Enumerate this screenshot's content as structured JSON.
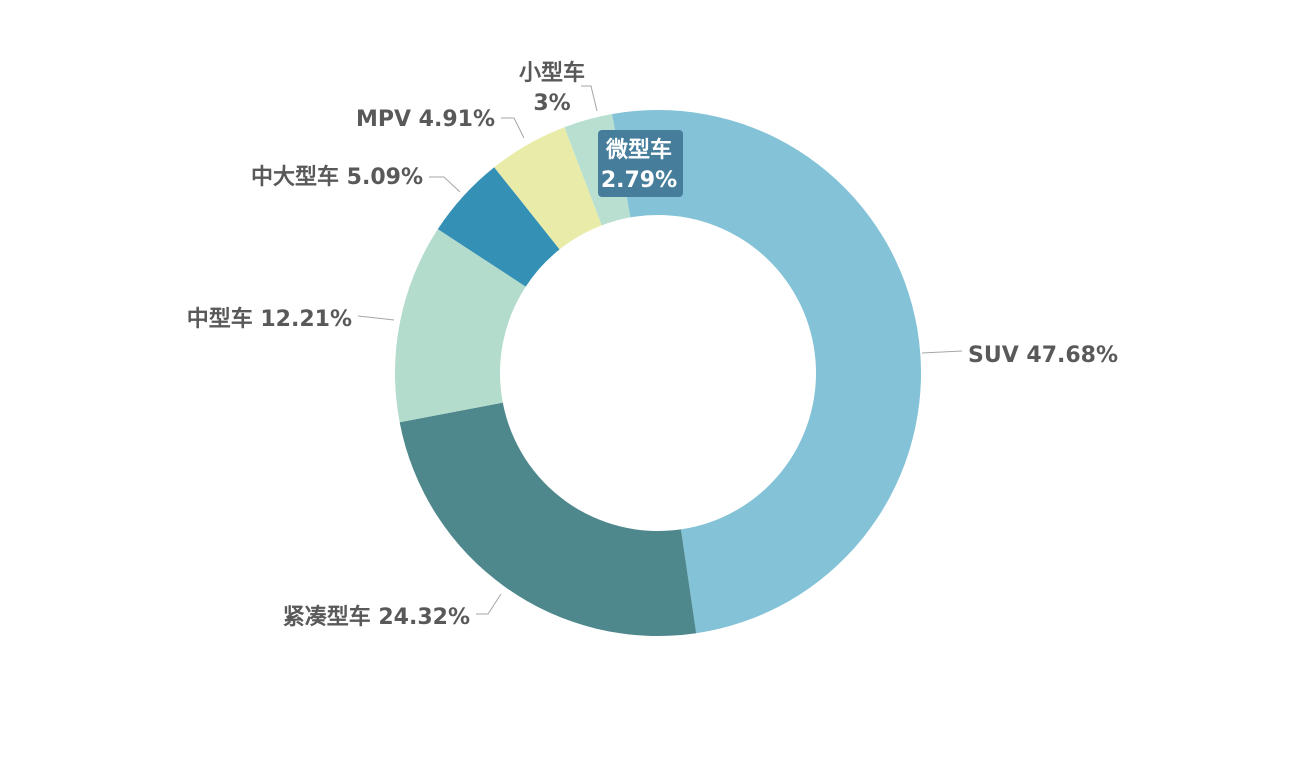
{
  "chart_data": {
    "type": "pie",
    "donut": true,
    "title": "",
    "legend": "none",
    "slices": [
      {
        "name": "SUV",
        "value": 47.68,
        "label": "SUV 47.68%",
        "color": "#83c2d7"
      },
      {
        "name": "紧凑型车",
        "value": 24.32,
        "label": "紧凑型车 24.32%",
        "color": "#4e888c"
      },
      {
        "name": "中型车",
        "value": 12.21,
        "label": "中型车 12.21%",
        "color": "#b3dccd"
      },
      {
        "name": "中大型车",
        "value": 5.09,
        "label": "中大型车 5.09%",
        "color": "#3590b6"
      },
      {
        "name": "MPV",
        "value": 4.91,
        "label": "MPV 4.91%",
        "color": "#e8eca8"
      },
      {
        "name": "小型车",
        "value": 3,
        "label": [
          "小型车",
          "3%"
        ],
        "color": "#b8dfd0"
      },
      {
        "name": "微型车",
        "value": 2.79,
        "label": [
          "微型车",
          "2.79%"
        ],
        "color": "#83c2d7",
        "highlight_color": "#457d9b"
      }
    ]
  }
}
